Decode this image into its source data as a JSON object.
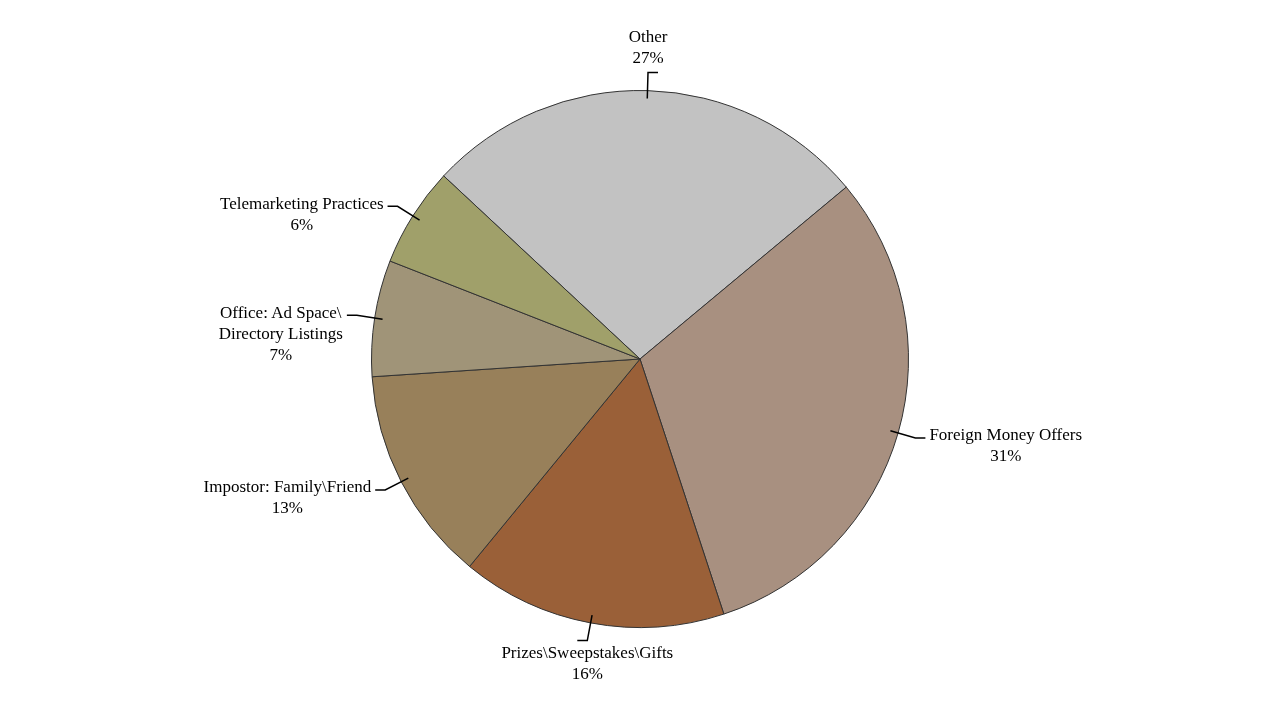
{
  "chart_data": {
    "type": "pie",
    "categories": [
      "Other",
      "Foreign Money Offers",
      "Prizes\\Sweepstakes\\Gifts",
      "Impostor: Family\\Friend",
      "Office: Ad Space\\ Directory Listings",
      "Telemarketing Practices"
    ],
    "values": [
      27,
      31,
      16,
      13,
      7,
      6
    ],
    "colors": [
      "#c2c2c2",
      "#a89080",
      "#9a6038",
      "#98805a",
      "#a09478",
      "#a0a06a"
    ],
    "value_labels": [
      "27%",
      "31%",
      "16%",
      "13%",
      "7%",
      "6%"
    ]
  }
}
